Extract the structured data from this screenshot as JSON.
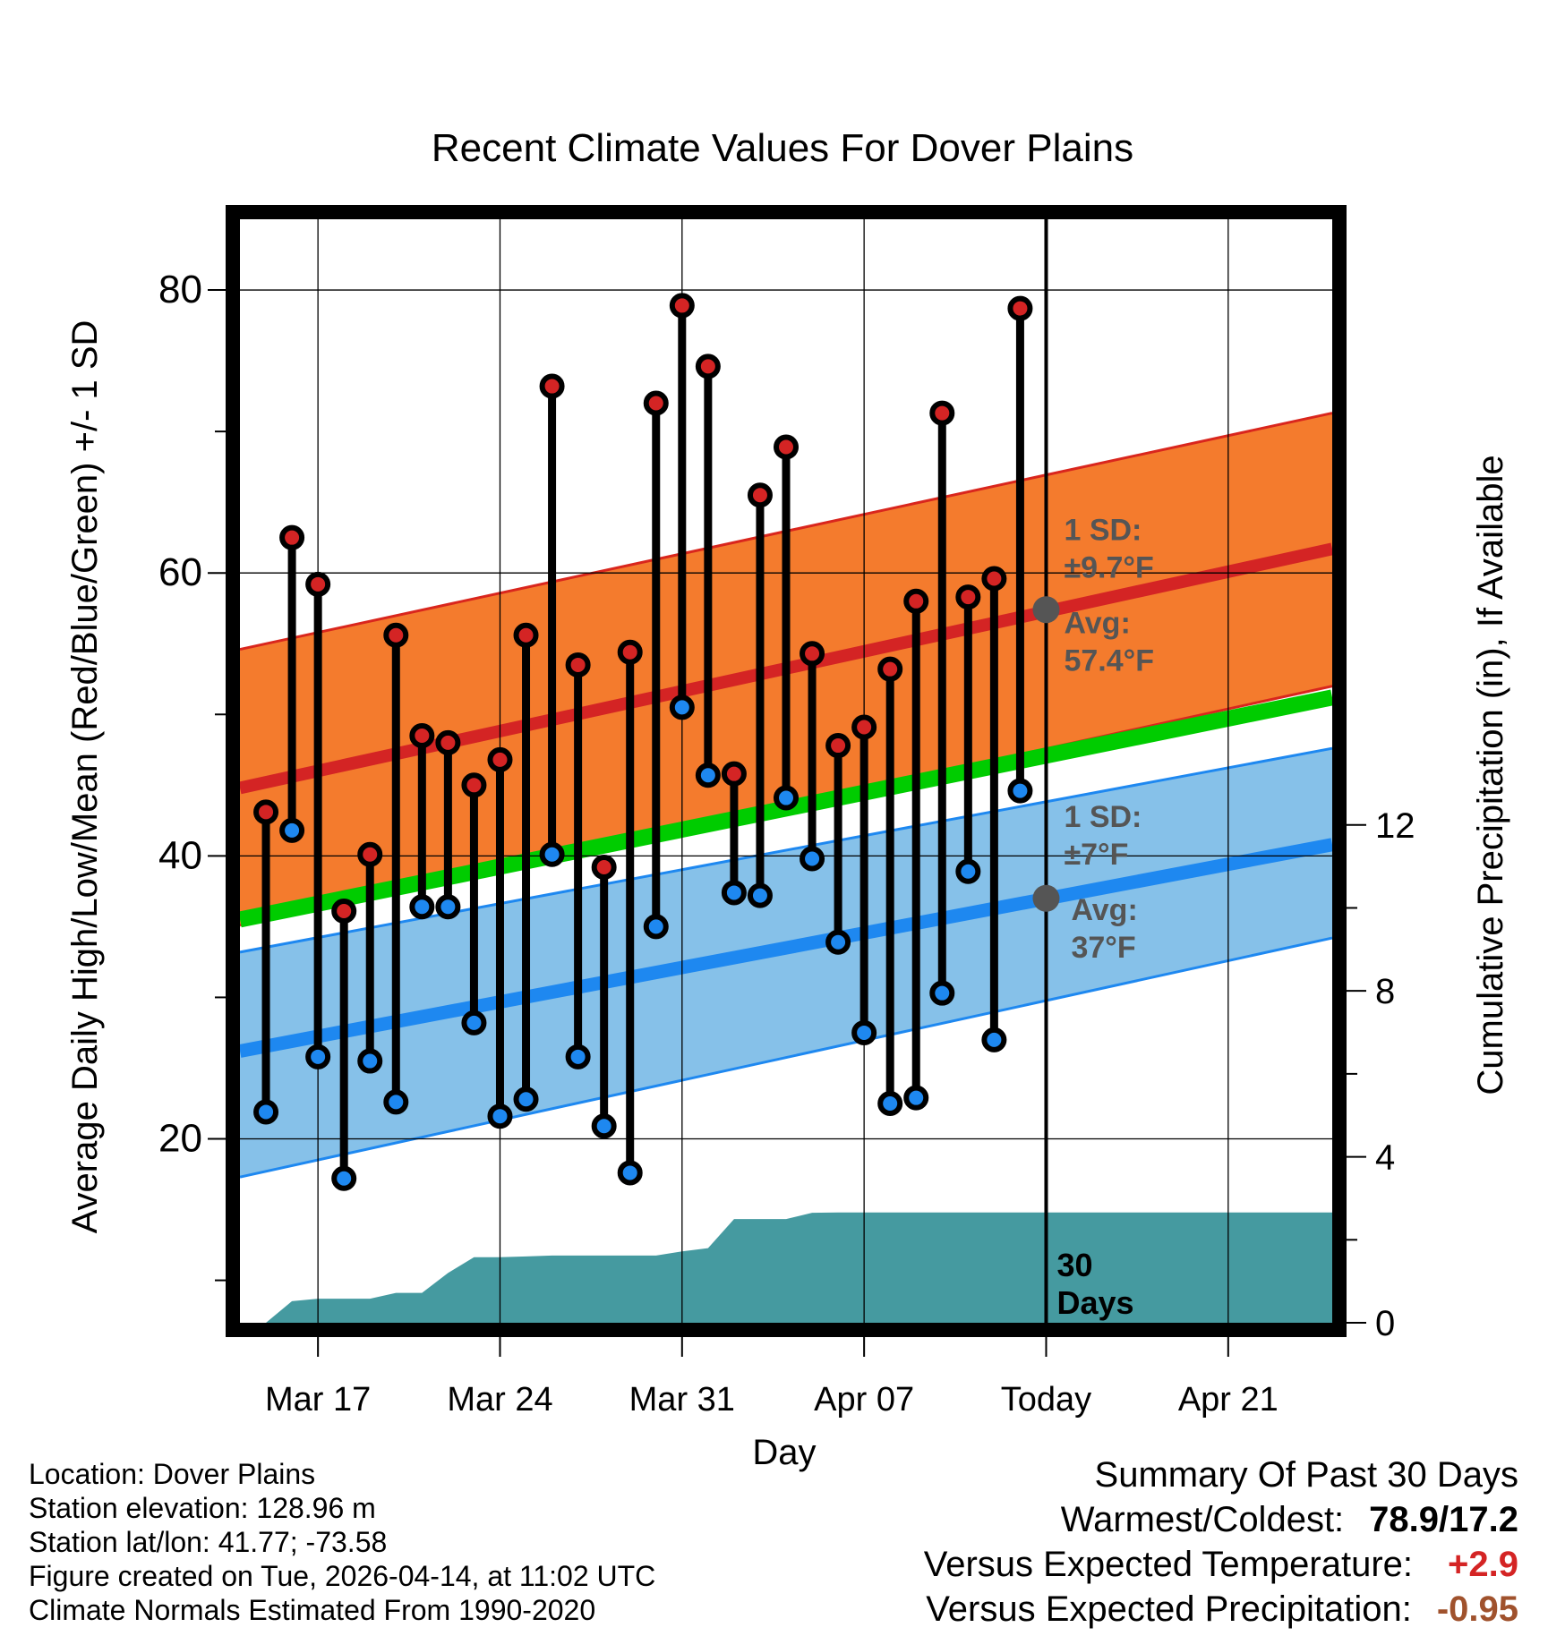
{
  "chart_data": {
    "type": "line",
    "title": "Recent Climate Values For Dover Plains",
    "xlabel": "Day",
    "ylabel_left": "Average Daily High/Low/Mean (Red/Blue/Green) +/- 1 SD",
    "ylabel_right": "Cumulative Precipitation (in), If Available",
    "y_left_range": [
      7,
      85
    ],
    "y_left_ticks": [
      "20",
      "40",
      "60",
      "80"
    ],
    "y_right_range": [
      0,
      26.6
    ],
    "y_right_ticks": [
      "0",
      "4",
      "8",
      "12"
    ],
    "x_day_range": [
      0,
      42
    ],
    "x_ticks": [
      {
        "label": "Mar 17",
        "day": 3
      },
      {
        "label": "Mar 24",
        "day": 10
      },
      {
        "label": "Mar 31",
        "day": 17
      },
      {
        "label": "Apr 07",
        "day": 24
      },
      {
        "label": "Today",
        "day": 31
      },
      {
        "label": "Apr 21",
        "day": 38
      }
    ],
    "today_day": 31,
    "normals": {
      "high_mean": [
        44.8,
        61.7
      ],
      "high_upper": [
        54.6,
        71.3
      ],
      "high_lower": [
        35.1,
        52.0
      ],
      "low_mean": [
        26.2,
        40.8
      ],
      "low_upper": [
        33.2,
        47.6
      ],
      "low_lower": [
        17.3,
        34.2
      ],
      "mean": [
        35.5,
        51.2
      ]
    },
    "days": [
      1,
      2,
      3,
      4,
      5,
      6,
      7,
      8,
      9,
      10,
      11,
      12,
      13,
      14,
      15,
      16,
      17,
      18,
      19,
      20,
      21,
      22,
      23,
      24,
      25,
      26,
      27,
      28,
      29,
      30
    ],
    "highs": [
      43.1,
      62.5,
      59.2,
      36.1,
      40.1,
      55.6,
      48.5,
      48.0,
      45.0,
      46.8,
      55.6,
      73.2,
      53.5,
      39.2,
      54.4,
      72.0,
      78.9,
      74.6,
      45.8,
      65.5,
      68.9,
      54.3,
      47.8,
      49.1,
      53.2,
      58.0,
      71.3,
      58.3,
      59.6,
      78.7
    ],
    "lows": [
      21.9,
      41.8,
      25.8,
      17.2,
      25.5,
      22.6,
      36.4,
      36.4,
      28.2,
      21.6,
      22.8,
      40.1,
      25.8,
      20.9,
      17.6,
      35.0,
      50.5,
      45.7,
      37.4,
      37.2,
      44.1,
      39.8,
      33.9,
      27.5,
      22.5,
      22.9,
      30.3,
      38.9,
      27.0,
      44.6
    ],
    "precip_days": [
      1,
      2,
      3,
      4,
      5,
      6,
      7,
      8,
      9,
      10,
      11,
      12,
      13,
      14,
      15,
      16,
      17,
      18,
      19,
      20,
      21,
      22,
      23,
      24,
      25,
      26,
      27,
      28,
      29,
      30,
      31,
      42
    ],
    "precip_cum": [
      0.0,
      0.52,
      0.58,
      0.58,
      0.58,
      0.72,
      0.72,
      1.2,
      1.58,
      1.58,
      1.6,
      1.62,
      1.62,
      1.62,
      1.62,
      1.62,
      1.72,
      1.8,
      2.5,
      2.5,
      2.5,
      2.65,
      2.66,
      2.66,
      2.66,
      2.66,
      2.66,
      2.66,
      2.66,
      2.66,
      2.66,
      2.66
    ],
    "annotations": {
      "high": {
        "sd_label": "1 SD:",
        "sd_value": "±9.7°F",
        "avg_label": "Avg:",
        "avg_value": "57.4°F",
        "avg": 57.4
      },
      "low": {
        "sd_label": "1 SD:",
        "sd_value": "±7°F",
        "avg_label": "Avg:",
        "avg_value": "37°F",
        "avg": 37.0
      },
      "window": [
        "30",
        "Days"
      ]
    },
    "colors": {
      "high_band": "#f47b2d",
      "high_edge": "#d9261d",
      "high_line": "#d42424",
      "low_band": "#86c1e9",
      "low_edge": "#1e88f0",
      "low_line": "#1e88f0",
      "mean_line": "#00cc00",
      "precip": "#459aa0",
      "high_dot": "#d42424",
      "low_dot": "#1e88f0",
      "annotation": "#555555"
    }
  },
  "footer": {
    "location": "Location: Dover Plains",
    "elevation": "Station elevation: 128.96 m",
    "latlon": "Station lat/lon: 41.77; -73.58",
    "created": "Figure created on Tue, 2026-04-14, at 11:02 UTC",
    "normals": "Climate Normals Estimated From 1990-2020"
  },
  "summary": {
    "title": "Summary Of Past 30 Days",
    "warm_cold_label": "Warmest/Coldest:",
    "warm_cold_value": "78.9/17.2",
    "temp_label": "Versus Expected Temperature:",
    "temp_value": "+2.9",
    "temp_color": "#d42424",
    "precip_label": "Versus Expected Precipitation:",
    "precip_value": "-0.95",
    "precip_color": "#a0522d"
  }
}
